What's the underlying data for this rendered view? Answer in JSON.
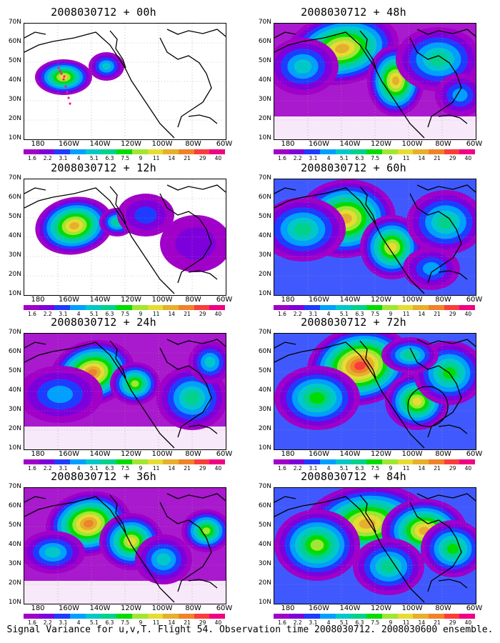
{
  "figure": {
    "caption": "Signal Variance for u,v,T. Flight 54. Observation time 2008030712. 2008030600 ensemble."
  },
  "axes": {
    "y_labels": [
      "70N",
      "60N",
      "50N",
      "40N",
      "30N",
      "20N",
      "10N"
    ],
    "x_labels": [
      "180",
      "160W",
      "140W",
      "120W",
      "100W",
      "80W",
      "60W"
    ]
  },
  "colorbar": {
    "labels": [
      "1.6",
      "2.2",
      "3.1",
      "4",
      "5.1",
      "6.3",
      "7.5",
      "9",
      "11",
      "14",
      "21",
      "29",
      "40"
    ],
    "colors": [
      "#a000c8",
      "#7d00dc",
      "#1e3cff",
      "#00a0ff",
      "#00c8c8",
      "#00d28c",
      "#00dc00",
      "#a0e632",
      "#e6dc32",
      "#e6af2d",
      "#f08228",
      "#fa3c3c",
      "#f00082"
    ]
  },
  "panels": [
    {
      "title": "2008030712 + 00h",
      "id": "p00",
      "intensity": 0.15,
      "dots": true
    },
    {
      "title": "2008030712 + 12h",
      "id": "p12",
      "intensity": 0.45
    },
    {
      "title": "2008030712 + 24h",
      "id": "p24",
      "intensity": 0.65
    },
    {
      "title": "2008030712 + 36h",
      "id": "p36",
      "intensity": 0.7
    },
    {
      "title": "2008030712 + 48h",
      "id": "p48",
      "intensity": 0.75
    },
    {
      "title": "2008030712 + 60h",
      "id": "p60",
      "intensity": 0.8
    },
    {
      "title": "2008030712 + 72h",
      "id": "p72",
      "intensity": 0.85,
      "circle": true
    },
    {
      "title": "2008030712 + 84h",
      "id": "p84",
      "intensity": 0.9
    }
  ]
}
